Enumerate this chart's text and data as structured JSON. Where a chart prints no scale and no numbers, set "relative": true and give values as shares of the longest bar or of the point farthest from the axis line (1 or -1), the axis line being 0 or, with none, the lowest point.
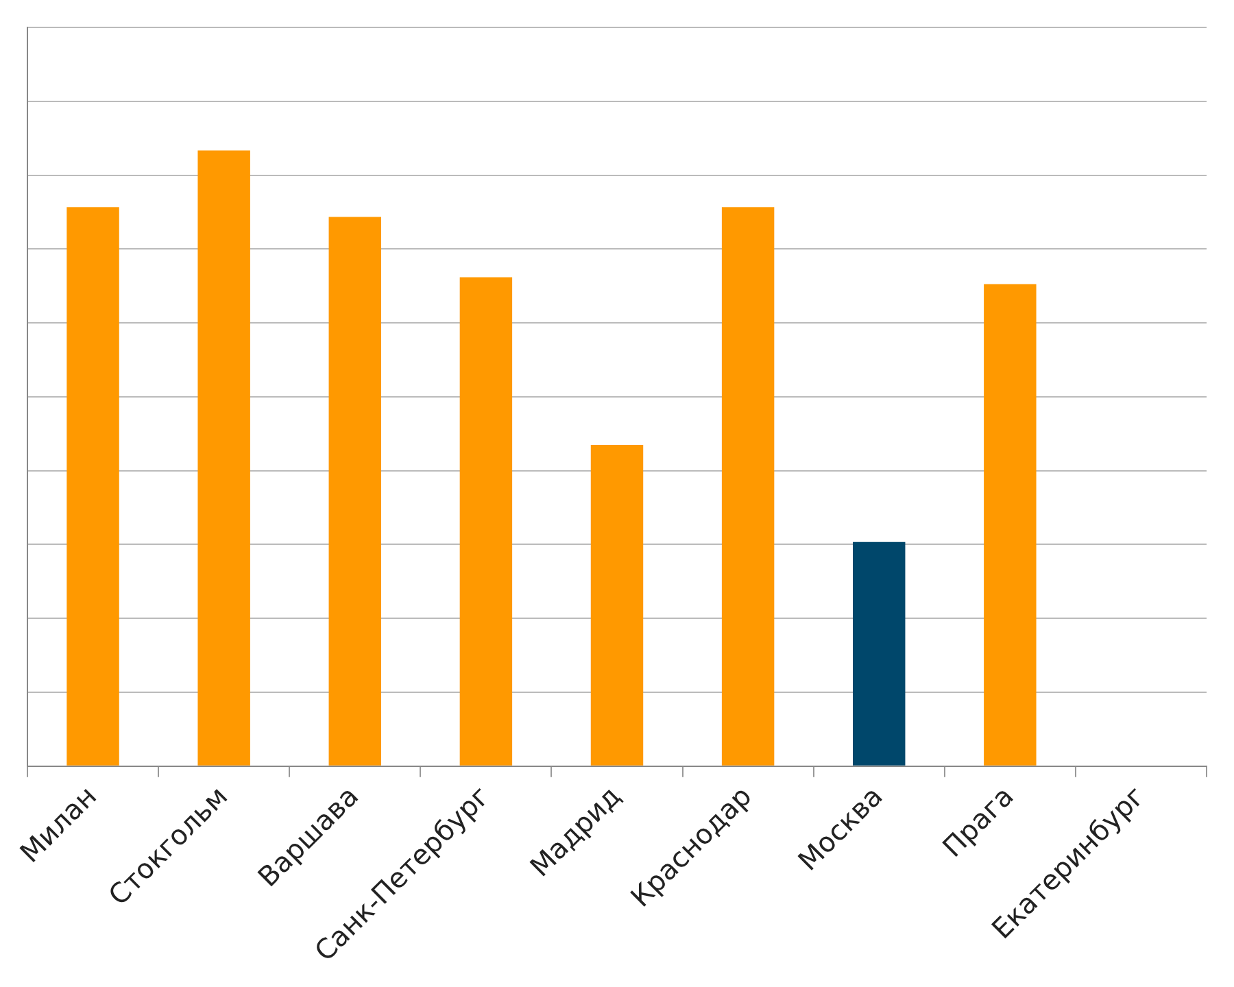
{
  "chart_data": {
    "type": "bar",
    "relative": true,
    "grid": "y",
    "legend": false,
    "categories": [
      "Милан",
      "Стокгольм",
      "Варшава",
      "Санк-Петербург",
      "Мадрид",
      "Краснодар",
      "Москва",
      "Прага",
      "Екатеринбург"
    ],
    "values": [
      0.908,
      1,
      0.892,
      0.794,
      0.522,
      0.908,
      0.364,
      0.783,
      null
    ],
    "colors": [
      "#ff9900",
      "#ff9900",
      "#ff9900",
      "#ff9900",
      "#ff9900",
      "#ff9900",
      "#00476b",
      "#ff9900",
      "#ff9900"
    ]
  }
}
